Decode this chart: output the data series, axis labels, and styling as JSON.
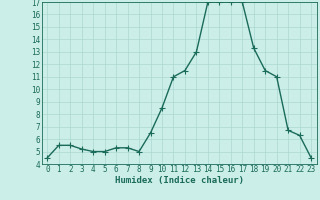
{
  "x": [
    0,
    1,
    2,
    3,
    4,
    5,
    6,
    7,
    8,
    9,
    10,
    11,
    12,
    13,
    14,
    15,
    16,
    17,
    18,
    19,
    20,
    21,
    22,
    23
  ],
  "y": [
    4.5,
    5.5,
    5.5,
    5.2,
    5.0,
    5.0,
    5.3,
    5.3,
    5.0,
    6.5,
    8.5,
    11.0,
    11.5,
    13.0,
    17.0,
    17.0,
    17.0,
    17.0,
    13.3,
    11.5,
    11.0,
    6.7,
    6.3,
    4.5
  ],
  "line_color": "#1a6b5a",
  "marker_color": "#1a6b5a",
  "bg_color": "#cceee8",
  "grid_color": "#aad8d0",
  "xlabel": "Humidex (Indice chaleur)",
  "ylim": [
    4,
    17
  ],
  "xlim_min": -0.5,
  "xlim_max": 23.5,
  "yticks": [
    4,
    5,
    6,
    7,
    8,
    9,
    10,
    11,
    12,
    13,
    14,
    15,
    16,
    17
  ],
  "xticks": [
    0,
    1,
    2,
    3,
    4,
    5,
    6,
    7,
    8,
    9,
    10,
    11,
    12,
    13,
    14,
    15,
    16,
    17,
    18,
    19,
    20,
    21,
    22,
    23
  ],
  "tick_color": "#1a6b5a",
  "xlabel_fontsize": 6.5,
  "tick_fontsize": 5.5,
  "line_width": 1.0,
  "marker_size": 2.0
}
